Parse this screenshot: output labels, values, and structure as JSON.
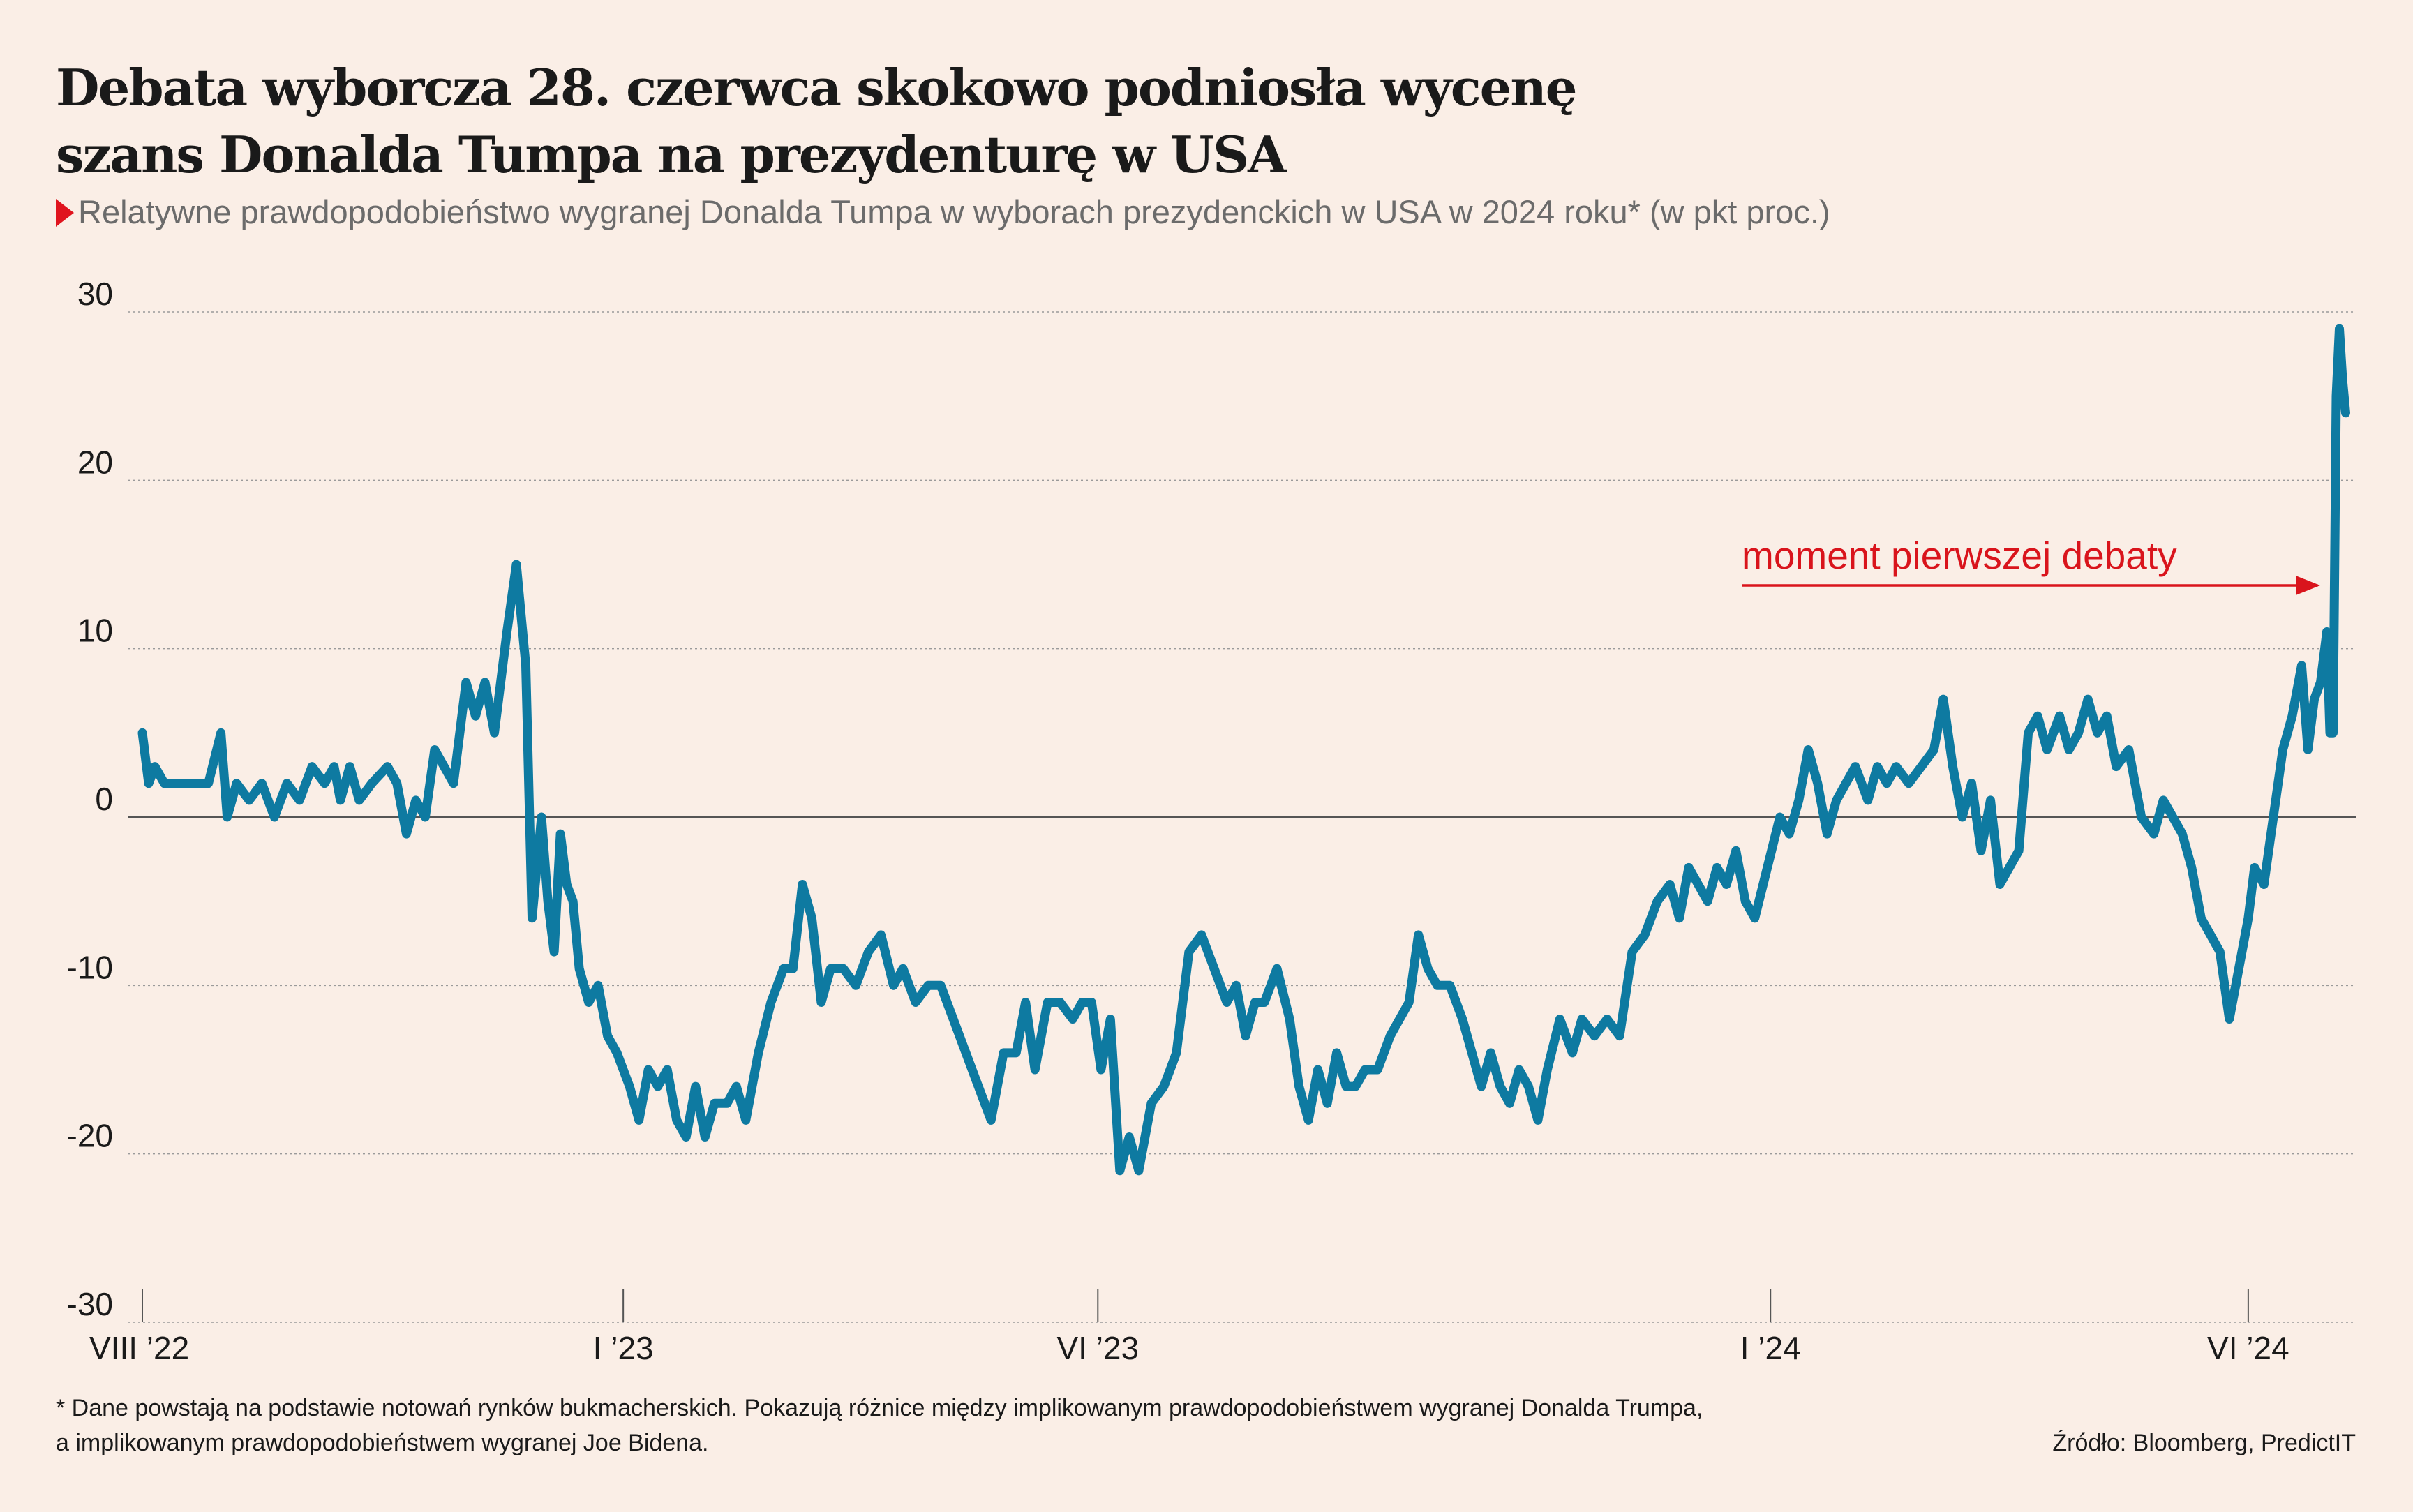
{
  "title_line1": "Debata wyborcza 28. czerwca skokowo podniosła wycenę",
  "title_line2": "szans Donalda Tumpa na prezydenturę w USA",
  "subtitle": "Relatywne prawdopodobieństwo wygranej Donalda Tumpa w wyborach prezydenckich w USA w 2024 roku* (w pkt proc.)",
  "footnote_line1": "* Dane powstają na podstawie notowań rynków bukmacherskich. Pokazują różnice między implikowanym prawdopodobieństwem wygranej Donalda Trumpa,",
  "footnote_line2": "a implikowanym prawdopodobieństwem wygranej Joe Bidena.",
  "source": "Źródło: Bloomberg, PredictIT",
  "colors": {
    "background": "#faeee6",
    "line": "#0e7aa1",
    "annotation": "#d9141c",
    "accent_triangle": "#e0141e"
  },
  "chart_data": {
    "type": "line",
    "title": "Debata wyborcza 28. czerwca skokowo podniosła wycenę szans Donalda Tumpa na prezydenturę w USA",
    "subtitle": "Relatywne prawdopodobieństwo wygranej Donalda Tumpa w wyborach prezydenckich w USA w 2024 roku* (w pkt proc.)",
    "ylim": [
      -30,
      30
    ],
    "yticks": [
      "30",
      "20",
      "10",
      "0",
      "-10",
      "-20",
      "-30"
    ],
    "xlim": [
      "2022-08-01",
      "2024-07-03"
    ],
    "xticks": [
      {
        "label": "VIII ’22",
        "date": "2022-08-01"
      },
      {
        "label": "I ’23",
        "date": "2023-01-01"
      },
      {
        "label": "VI ’23",
        "date": "2023-06-01"
      },
      {
        "label": "I ’24",
        "date": "2024-01-01"
      },
      {
        "label": "VI ’24",
        "date": "2024-06-01"
      }
    ],
    "grid": true,
    "annotation": {
      "text": "moment pierwszej debaty",
      "date": "2024-06-28"
    },
    "series": [
      {
        "points": [
          [
            "2022-08-01",
            5
          ],
          [
            "2022-08-03",
            2
          ],
          [
            "2022-08-05",
            3
          ],
          [
            "2022-08-08",
            2
          ],
          [
            "2022-08-15",
            2
          ],
          [
            "2022-08-22",
            2
          ],
          [
            "2022-08-26",
            5
          ],
          [
            "2022-08-28",
            0
          ],
          [
            "2022-08-31",
            2
          ],
          [
            "2022-09-04",
            1
          ],
          [
            "2022-09-08",
            2
          ],
          [
            "2022-09-12",
            0
          ],
          [
            "2022-09-16",
            2
          ],
          [
            "2022-09-20",
            1
          ],
          [
            "2022-09-24",
            3
          ],
          [
            "2022-09-28",
            2
          ],
          [
            "2022-10-01",
            3
          ],
          [
            "2022-10-03",
            1
          ],
          [
            "2022-10-06",
            3
          ],
          [
            "2022-10-09",
            1
          ],
          [
            "2022-10-13",
            2
          ],
          [
            "2022-10-18",
            3
          ],
          [
            "2022-10-21",
            2
          ],
          [
            "2022-10-24",
            -1
          ],
          [
            "2022-10-27",
            1
          ],
          [
            "2022-10-30",
            0
          ],
          [
            "2022-11-02",
            4
          ],
          [
            "2022-11-05",
            3
          ],
          [
            "2022-11-08",
            2
          ],
          [
            "2022-11-12",
            8
          ],
          [
            "2022-11-15",
            6
          ],
          [
            "2022-11-18",
            8
          ],
          [
            "2022-11-21",
            5
          ],
          [
            "2022-11-25",
            11
          ],
          [
            "2022-11-28",
            15
          ],
          [
            "2022-12-01",
            9
          ],
          [
            "2022-12-03",
            -6
          ],
          [
            "2022-12-06",
            0
          ],
          [
            "2022-12-08",
            -5
          ],
          [
            "2022-12-10",
            -8
          ],
          [
            "2022-12-12",
            -1
          ],
          [
            "2022-12-14",
            -4
          ],
          [
            "2022-12-16",
            -5
          ],
          [
            "2022-12-18",
            -9
          ],
          [
            "2022-12-21",
            -11
          ],
          [
            "2022-12-24",
            -10
          ],
          [
            "2022-12-27",
            -13
          ],
          [
            "2022-12-30",
            -14
          ],
          [
            "2023-01-03",
            -16
          ],
          [
            "2023-01-06",
            -18
          ],
          [
            "2023-01-09",
            -15
          ],
          [
            "2023-01-12",
            -16
          ],
          [
            "2023-01-15",
            -15
          ],
          [
            "2023-01-18",
            -18
          ],
          [
            "2023-01-21",
            -19
          ],
          [
            "2023-01-24",
            -16
          ],
          [
            "2023-01-27",
            -19
          ],
          [
            "2023-01-30",
            -17
          ],
          [
            "2023-02-03",
            -17
          ],
          [
            "2023-02-06",
            -16
          ],
          [
            "2023-02-09",
            -18
          ],
          [
            "2023-02-13",
            -14
          ],
          [
            "2023-02-17",
            -11
          ],
          [
            "2023-02-21",
            -9
          ],
          [
            "2023-02-24",
            -9
          ],
          [
            "2023-02-27",
            -4
          ],
          [
            "2023-03-02",
            -6
          ],
          [
            "2023-03-05",
            -11
          ],
          [
            "2023-03-08",
            -9
          ],
          [
            "2023-03-12",
            -9
          ],
          [
            "2023-03-16",
            -10
          ],
          [
            "2023-03-20",
            -8
          ],
          [
            "2023-03-24",
            -7
          ],
          [
            "2023-03-28",
            -10
          ],
          [
            "2023-03-31",
            -9
          ],
          [
            "2023-04-04",
            -11
          ],
          [
            "2023-04-08",
            -10
          ],
          [
            "2023-04-12",
            -10
          ],
          [
            "2023-04-16",
            -12
          ],
          [
            "2023-04-20",
            -14
          ],
          [
            "2023-04-24",
            -16
          ],
          [
            "2023-04-28",
            -18
          ],
          [
            "2023-05-02",
            -14
          ],
          [
            "2023-05-06",
            -14
          ],
          [
            "2023-05-09",
            -11
          ],
          [
            "2023-05-12",
            -15
          ],
          [
            "2023-05-16",
            -11
          ],
          [
            "2023-05-20",
            -11
          ],
          [
            "2023-05-24",
            -12
          ],
          [
            "2023-05-27",
            -11
          ],
          [
            "2023-05-30",
            -11
          ],
          [
            "2023-06-02",
            -15
          ],
          [
            "2023-06-05",
            -12
          ],
          [
            "2023-06-08",
            -21
          ],
          [
            "2023-06-11",
            -19
          ],
          [
            "2023-06-14",
            -21
          ],
          [
            "2023-06-18",
            -17
          ],
          [
            "2023-06-22",
            -16
          ],
          [
            "2023-06-26",
            -14
          ],
          [
            "2023-06-30",
            -8
          ],
          [
            "2023-07-04",
            -7
          ],
          [
            "2023-07-08",
            -9
          ],
          [
            "2023-07-12",
            -11
          ],
          [
            "2023-07-15",
            -10
          ],
          [
            "2023-07-18",
            -13
          ],
          [
            "2023-07-21",
            -11
          ],
          [
            "2023-07-24",
            -11
          ],
          [
            "2023-07-28",
            -9
          ],
          [
            "2023-08-01",
            -12
          ],
          [
            "2023-08-04",
            -16
          ],
          [
            "2023-08-07",
            -18
          ],
          [
            "2023-08-10",
            -15
          ],
          [
            "2023-08-13",
            -17
          ],
          [
            "2023-08-16",
            -14
          ],
          [
            "2023-08-19",
            -16
          ],
          [
            "2023-08-22",
            -16
          ],
          [
            "2023-08-25",
            -15
          ],
          [
            "2023-08-29",
            -15
          ],
          [
            "2023-09-02",
            -13
          ],
          [
            "2023-09-05",
            -12
          ],
          [
            "2023-09-08",
            -11
          ],
          [
            "2023-09-11",
            -7
          ],
          [
            "2023-09-14",
            -9
          ],
          [
            "2023-09-17",
            -10
          ],
          [
            "2023-09-21",
            -10
          ],
          [
            "2023-09-25",
            -12
          ],
          [
            "2023-09-28",
            -14
          ],
          [
            "2023-10-01",
            -16
          ],
          [
            "2023-10-04",
            -14
          ],
          [
            "2023-10-07",
            -16
          ],
          [
            "2023-10-10",
            -17
          ],
          [
            "2023-10-13",
            -15
          ],
          [
            "2023-10-16",
            -16
          ],
          [
            "2023-10-19",
            -18
          ],
          [
            "2023-10-22",
            -15
          ],
          [
            "2023-10-26",
            -12
          ],
          [
            "2023-10-30",
            -14
          ],
          [
            "2023-11-02",
            -12
          ],
          [
            "2023-11-06",
            -13
          ],
          [
            "2023-11-10",
            -12
          ],
          [
            "2023-11-14",
            -13
          ],
          [
            "2023-11-18",
            -8
          ],
          [
            "2023-11-22",
            -7
          ],
          [
            "2023-11-26",
            -5
          ],
          [
            "2023-11-30",
            -4
          ],
          [
            "2023-12-03",
            -6
          ],
          [
            "2023-12-06",
            -3
          ],
          [
            "2023-12-09",
            -4
          ],
          [
            "2023-12-12",
            -5
          ],
          [
            "2023-12-15",
            -3
          ],
          [
            "2023-12-18",
            -4
          ],
          [
            "2023-12-21",
            -2
          ],
          [
            "2023-12-24",
            -5
          ],
          [
            "2023-12-27",
            -6
          ],
          [
            "2023-12-31",
            -3
          ],
          [
            "2024-01-04",
            0
          ],
          [
            "2024-01-07",
            -1
          ],
          [
            "2024-01-10",
            1
          ],
          [
            "2024-01-13",
            4
          ],
          [
            "2024-01-16",
            2
          ],
          [
            "2024-01-19",
            -1
          ],
          [
            "2024-01-22",
            1
          ],
          [
            "2024-01-25",
            2
          ],
          [
            "2024-01-28",
            3
          ],
          [
            "2024-02-01",
            1
          ],
          [
            "2024-02-04",
            3
          ],
          [
            "2024-02-07",
            2
          ],
          [
            "2024-02-10",
            3
          ],
          [
            "2024-02-14",
            2
          ],
          [
            "2024-02-18",
            3
          ],
          [
            "2024-02-22",
            4
          ],
          [
            "2024-02-25",
            7
          ],
          [
            "2024-02-28",
            3
          ],
          [
            "2024-03-02",
            0
          ],
          [
            "2024-03-05",
            2
          ],
          [
            "2024-03-08",
            -2
          ],
          [
            "2024-03-11",
            1
          ],
          [
            "2024-03-14",
            -4
          ],
          [
            "2024-03-17",
            -3
          ],
          [
            "2024-03-20",
            -2
          ],
          [
            "2024-03-23",
            5
          ],
          [
            "2024-03-26",
            6
          ],
          [
            "2024-03-29",
            4
          ],
          [
            "2024-04-02",
            6
          ],
          [
            "2024-04-05",
            4
          ],
          [
            "2024-04-08",
            5
          ],
          [
            "2024-04-11",
            7
          ],
          [
            "2024-04-14",
            5
          ],
          [
            "2024-04-17",
            6
          ],
          [
            "2024-04-20",
            3
          ],
          [
            "2024-04-24",
            4
          ],
          [
            "2024-04-28",
            0
          ],
          [
            "2024-05-02",
            -1
          ],
          [
            "2024-05-05",
            1
          ],
          [
            "2024-05-08",
            0
          ],
          [
            "2024-05-11",
            -1
          ],
          [
            "2024-05-14",
            -3
          ],
          [
            "2024-05-17",
            -6
          ],
          [
            "2024-05-20",
            -7
          ],
          [
            "2024-05-23",
            -8
          ],
          [
            "2024-05-26",
            -12
          ],
          [
            "2024-05-29",
            -9
          ],
          [
            "2024-06-01",
            -6
          ],
          [
            "2024-06-03",
            -3
          ],
          [
            "2024-06-06",
            -4
          ],
          [
            "2024-06-09",
            0
          ],
          [
            "2024-06-12",
            4
          ],
          [
            "2024-06-15",
            6
          ],
          [
            "2024-06-18",
            9
          ],
          [
            "2024-06-20",
            4
          ],
          [
            "2024-06-22",
            7
          ],
          [
            "2024-06-24",
            8
          ],
          [
            "2024-06-26",
            11
          ],
          [
            "2024-06-27",
            5
          ],
          [
            "2024-06-28",
            5
          ],
          [
            "2024-06-29",
            25
          ],
          [
            "2024-06-30",
            29
          ],
          [
            "2024-07-01",
            26
          ],
          [
            "2024-07-02",
            24
          ]
        ]
      }
    ]
  }
}
